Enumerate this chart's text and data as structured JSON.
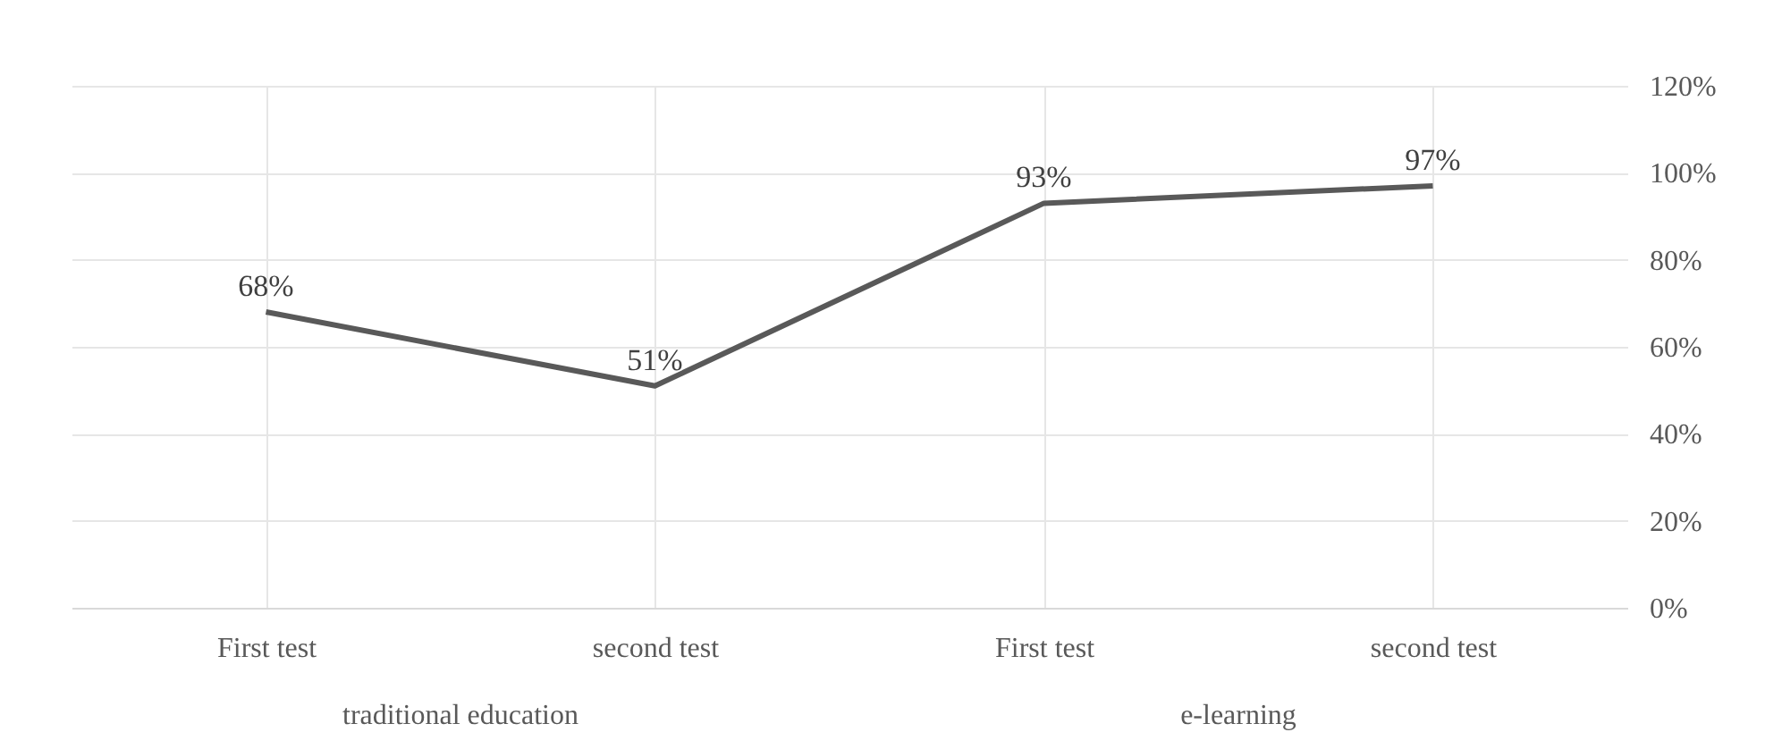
{
  "chart_data": {
    "type": "line",
    "categories": [
      "First test",
      "second test",
      "First test",
      "second test"
    ],
    "series": [
      {
        "color": "#595959",
        "values": [
          68,
          51,
          93,
          97
        ],
        "value_labels": [
          "68%",
          "51%",
          "93%",
          "97%"
        ]
      }
    ],
    "ylim": [
      0,
      120
    ],
    "yticks": [
      {
        "value": 0,
        "label": "0%"
      },
      {
        "value": 20,
        "label": "20%"
      },
      {
        "value": 40,
        "label": "40%"
      },
      {
        "value": 60,
        "label": "60%"
      },
      {
        "value": 80,
        "label": "80%"
      },
      {
        "value": 100,
        "label": "100%"
      },
      {
        "value": 120,
        "label": "120%"
      }
    ],
    "annotations": [
      "traditional education",
      "e-learning"
    ],
    "grid": true,
    "marker": "none",
    "line_style": "solid"
  }
}
